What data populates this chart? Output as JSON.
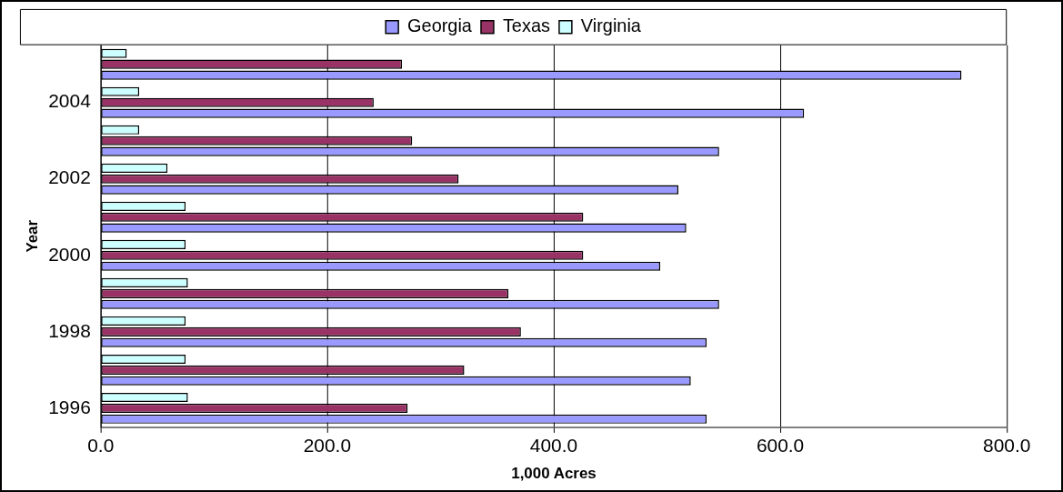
{
  "chart_data": {
    "type": "bar",
    "orientation": "horizontal",
    "xlabel": "1,000 Acres",
    "ylabel": "Year",
    "categories": [
      null,
      "2004",
      null,
      "2002",
      null,
      "2000",
      null,
      "1998",
      null,
      "1996"
    ],
    "series": [
      {
        "name": "Georgia",
        "color": "#9999ff",
        "values": [
          760,
          621,
          546,
          510,
          517,
          494,
          546,
          535,
          521,
          535
        ]
      },
      {
        "name": "Texas",
        "color": "#993366",
        "values": [
          266,
          241,
          275,
          316,
          426,
          426,
          360,
          371,
          321,
          271
        ]
      },
      {
        "name": "Virginia",
        "color": "#ccffff",
        "values": [
          23,
          34,
          34,
          59,
          75,
          75,
          77,
          75,
          75,
          77
        ]
      }
    ],
    "xlim": [
      0,
      800
    ],
    "xticks": [
      {
        "value": 0,
        "label": "0.0"
      },
      {
        "value": 200,
        "label": "200.0"
      },
      {
        "value": 400,
        "label": "400.0"
      },
      {
        "value": 600,
        "label": "600.0"
      },
      {
        "value": 800,
        "label": "800.0"
      }
    ],
    "grid": "x",
    "legend": "top"
  }
}
